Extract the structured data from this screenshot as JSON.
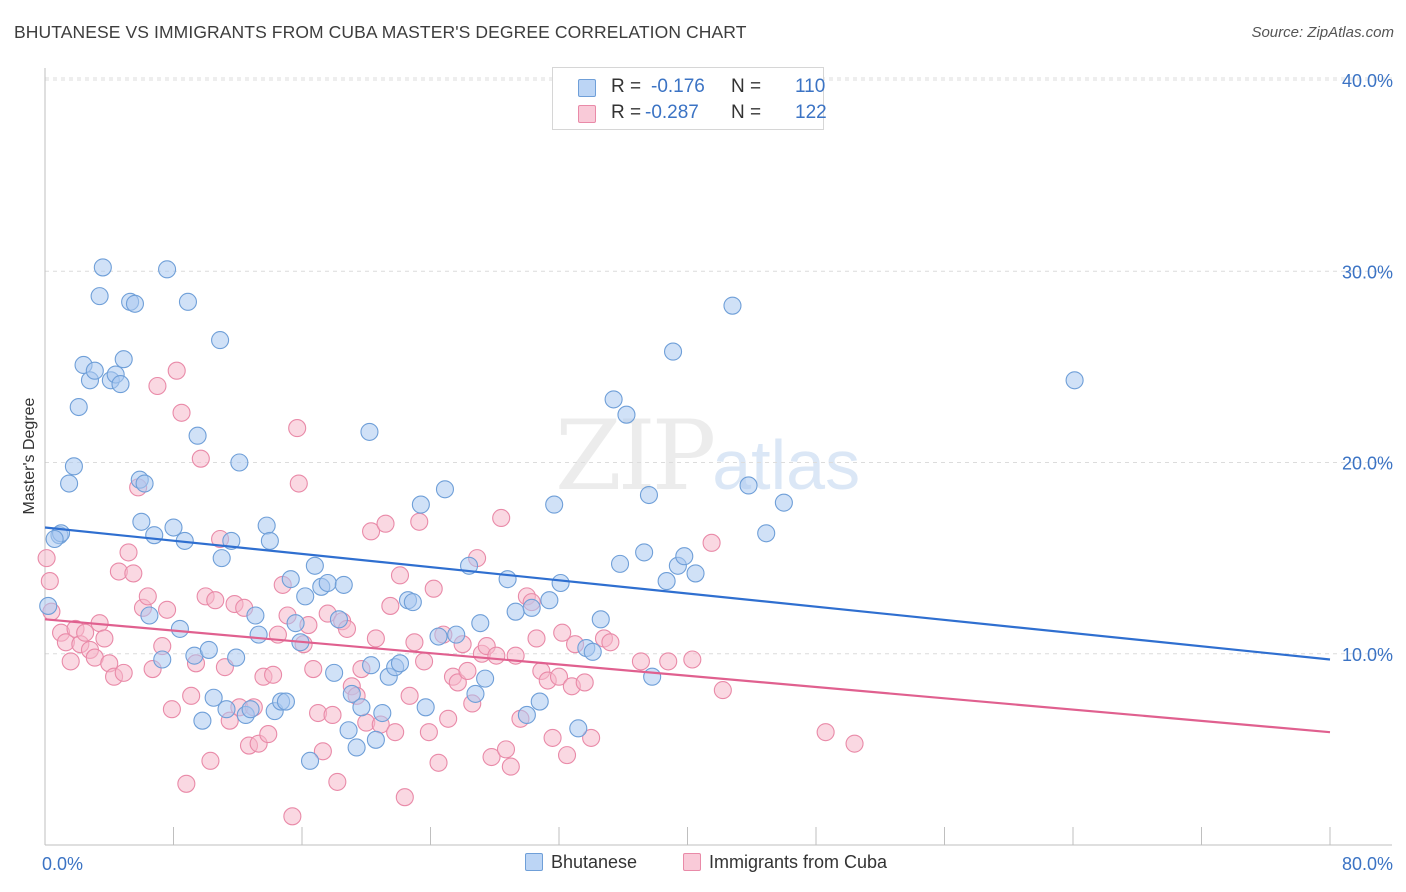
{
  "title": "BHUTANESE VS IMMIGRANTS FROM CUBA MASTER'S DEGREE CORRELATION CHART",
  "source": "Source: ZipAtlas.com",
  "watermark": {
    "zip": "ZIP",
    "atlas": "atlas"
  },
  "legend_top": [
    {
      "r_label": "R =",
      "r_value": "-0.176",
      "n_label": "N =",
      "n_value": "110",
      "color": "#a9c8f0"
    },
    {
      "r_label": "R =",
      "r_value": "-0.287",
      "n_label": "N =",
      "n_value": "122",
      "color": "#f5b8cb"
    }
  ],
  "legend_bottom": [
    "Bhutanese",
    "Immigrants from Cuba"
  ],
  "chart_data": {
    "type": "scatter",
    "xlabel": "",
    "ylabel": "Master's Degree",
    "xlim": [
      0,
      80
    ],
    "ylim": [
      0,
      40
    ],
    "x_tick_labels": [
      "0.0%",
      "80.0%"
    ],
    "y_tick_values": [
      10,
      20,
      30,
      40
    ],
    "y_tick_labels": [
      "10.0%",
      "20.0%",
      "30.0%",
      "40.0%"
    ],
    "grid": "horizontal dashed",
    "legend_placement": "top-center",
    "colors": {
      "blue_fill": "#a9c8f0",
      "blue_stroke": "#6f9fd8",
      "blue_line": "#2f6fd0",
      "pink_fill": "#f5b8cb",
      "pink_stroke": "#e98aa8",
      "pink_line": "#e0608f"
    },
    "series": [
      {
        "name": "Bhutanese",
        "trend": [
          [
            0,
            16.6
          ],
          [
            80,
            9.7
          ]
        ],
        "points": [
          [
            0.2,
            12.5
          ],
          [
            0.9,
            16.2
          ],
          [
            1.5,
            18.9
          ],
          [
            1.8,
            19.8
          ],
          [
            2.1,
            22.9
          ],
          [
            2.4,
            25.1
          ],
          [
            2.8,
            24.3
          ],
          [
            3.1,
            24.8
          ],
          [
            3.4,
            28.7
          ],
          [
            3.6,
            30.2
          ],
          [
            4.1,
            24.3
          ],
          [
            4.4,
            24.6
          ],
          [
            4.7,
            24.1
          ],
          [
            4.9,
            25.4
          ],
          [
            5.3,
            28.4
          ],
          [
            5.6,
            28.3
          ],
          [
            5.9,
            19.1
          ],
          [
            6.2,
            18.9
          ],
          [
            6.5,
            12
          ],
          [
            6.8,
            16.2
          ],
          [
            7.3,
            9.7
          ],
          [
            7.6,
            30.1
          ],
          [
            8.0,
            16.6
          ],
          [
            8.4,
            11.3
          ],
          [
            8.7,
            15.9
          ],
          [
            8.9,
            28.4
          ],
          [
            9.3,
            9.9
          ],
          [
            9.5,
            21.4
          ],
          [
            9.8,
            6.5
          ],
          [
            10.2,
            10.2
          ],
          [
            10.5,
            7.7
          ],
          [
            10.9,
            26.4
          ],
          [
            11.0,
            15
          ],
          [
            11.3,
            7.1
          ],
          [
            11.6,
            15.9
          ],
          [
            11.9,
            9.8
          ],
          [
            12.1,
            20
          ],
          [
            12.5,
            6.8
          ],
          [
            12.8,
            7.1
          ],
          [
            13.1,
            12
          ],
          [
            13.3,
            11
          ],
          [
            13.8,
            16.7
          ],
          [
            14.0,
            15.9
          ],
          [
            14.3,
            7
          ],
          [
            14.7,
            7.5
          ],
          [
            15.0,
            7.5
          ],
          [
            15.3,
            13.9
          ],
          [
            15.6,
            11.6
          ],
          [
            15.9,
            10.6
          ],
          [
            16.2,
            13
          ],
          [
            16.5,
            4.4
          ],
          [
            16.8,
            14.6
          ],
          [
            17.2,
            13.5
          ],
          [
            17.6,
            13.7
          ],
          [
            18.0,
            9
          ],
          [
            18.3,
            11.8
          ],
          [
            18.6,
            13.6
          ],
          [
            18.9,
            6
          ],
          [
            19.1,
            7.9
          ],
          [
            19.4,
            5.1
          ],
          [
            19.7,
            7.2
          ],
          [
            20.2,
            21.6
          ],
          [
            20.3,
            9.4
          ],
          [
            20.6,
            5.5
          ],
          [
            21.0,
            6.9
          ],
          [
            21.4,
            8.8
          ],
          [
            21.8,
            9.3
          ],
          [
            22.1,
            9.5
          ],
          [
            22.6,
            12.8
          ],
          [
            22.9,
            12.7
          ],
          [
            23.4,
            17.8
          ],
          [
            23.7,
            7.2
          ],
          [
            24.5,
            10.9
          ],
          [
            24.9,
            18.6
          ],
          [
            25.6,
            11
          ],
          [
            26.4,
            14.6
          ],
          [
            26.8,
            7.9
          ],
          [
            27.1,
            11.6
          ],
          [
            27.4,
            8.7
          ],
          [
            28.8,
            13.9
          ],
          [
            29.3,
            12.2
          ],
          [
            30.0,
            6.8
          ],
          [
            30.3,
            12.4
          ],
          [
            30.8,
            7.5
          ],
          [
            31.4,
            12.8
          ],
          [
            31.7,
            17.8
          ],
          [
            32.1,
            13.7
          ],
          [
            33.2,
            6.1
          ],
          [
            33.7,
            10.3
          ],
          [
            34.1,
            10.1
          ],
          [
            34.6,
            11.8
          ],
          [
            35.4,
            23.3
          ],
          [
            35.8,
            14.7
          ],
          [
            36.2,
            22.5
          ],
          [
            37.3,
            15.3
          ],
          [
            37.6,
            18.3
          ],
          [
            37.8,
            8.8
          ],
          [
            38.7,
            13.8
          ],
          [
            39.1,
            25.8
          ],
          [
            39.4,
            14.6
          ],
          [
            39.8,
            15.1
          ],
          [
            40.5,
            14.2
          ],
          [
            42.8,
            28.2
          ],
          [
            43.8,
            18.8
          ],
          [
            44.9,
            16.3
          ],
          [
            46.0,
            17.9
          ],
          [
            64.1,
            24.3
          ],
          [
            1.0,
            16.3
          ],
          [
            0.6,
            16.0
          ],
          [
            6.0,
            16.9
          ]
        ]
      },
      {
        "name": "Immigrants from Cuba",
        "trend": [
          [
            0,
            11.8
          ],
          [
            80,
            5.9
          ]
        ],
        "points": [
          [
            0.1,
            15
          ],
          [
            0.3,
            13.8
          ],
          [
            0.4,
            12.2
          ],
          [
            1.0,
            11.1
          ],
          [
            1.3,
            10.6
          ],
          [
            1.6,
            9.6
          ],
          [
            1.9,
            11.3
          ],
          [
            2.2,
            10.5
          ],
          [
            2.5,
            11.1
          ],
          [
            2.8,
            10.2
          ],
          [
            3.1,
            9.8
          ],
          [
            3.4,
            11.6
          ],
          [
            3.7,
            10.8
          ],
          [
            4.0,
            9.5
          ],
          [
            4.3,
            8.8
          ],
          [
            4.6,
            14.3
          ],
          [
            4.9,
            9
          ],
          [
            5.2,
            15.3
          ],
          [
            5.5,
            14.2
          ],
          [
            5.8,
            18.7
          ],
          [
            6.1,
            12.4
          ],
          [
            6.4,
            13
          ],
          [
            6.7,
            9.2
          ],
          [
            7.0,
            24
          ],
          [
            7.3,
            10.4
          ],
          [
            7.6,
            12.3
          ],
          [
            7.9,
            7.1
          ],
          [
            8.2,
            24.8
          ],
          [
            8.5,
            22.6
          ],
          [
            8.8,
            3.2
          ],
          [
            9.1,
            7.8
          ],
          [
            9.4,
            9.5
          ],
          [
            9.7,
            20.2
          ],
          [
            10.0,
            13
          ],
          [
            10.3,
            4.4
          ],
          [
            10.6,
            12.8
          ],
          [
            10.9,
            16
          ],
          [
            11.2,
            9.3
          ],
          [
            11.5,
            6.5
          ],
          [
            11.8,
            12.6
          ],
          [
            12.1,
            7.2
          ],
          [
            12.4,
            12.4
          ],
          [
            12.7,
            5.2
          ],
          [
            13.0,
            7.2
          ],
          [
            13.3,
            5.3
          ],
          [
            13.6,
            8.8
          ],
          [
            13.9,
            5.8
          ],
          [
            14.2,
            8.9
          ],
          [
            14.5,
            11
          ],
          [
            14.8,
            13.6
          ],
          [
            15.1,
            12
          ],
          [
            15.4,
            1.5
          ],
          [
            15.7,
            21.8
          ],
          [
            15.8,
            18.9
          ],
          [
            16.1,
            10.5
          ],
          [
            16.4,
            11.5
          ],
          [
            16.7,
            9.2
          ],
          [
            17.0,
            6.9
          ],
          [
            17.3,
            4.9
          ],
          [
            17.6,
            12.1
          ],
          [
            17.9,
            6.8
          ],
          [
            18.2,
            3.3
          ],
          [
            18.5,
            11.7
          ],
          [
            18.8,
            11.3
          ],
          [
            19.1,
            8.3
          ],
          [
            19.4,
            7.8
          ],
          [
            19.7,
            9.2
          ],
          [
            20.0,
            6.4
          ],
          [
            20.3,
            16.4
          ],
          [
            20.6,
            10.8
          ],
          [
            20.9,
            6.3
          ],
          [
            21.2,
            16.8
          ],
          [
            21.5,
            12.5
          ],
          [
            21.8,
            5.9
          ],
          [
            22.1,
            14.1
          ],
          [
            22.4,
            2.5
          ],
          [
            22.7,
            7.8
          ],
          [
            23.0,
            10.6
          ],
          [
            23.3,
            16.9
          ],
          [
            23.6,
            9.6
          ],
          [
            23.9,
            5.9
          ],
          [
            24.2,
            13.4
          ],
          [
            24.5,
            4.3
          ],
          [
            24.8,
            11
          ],
          [
            25.1,
            6.6
          ],
          [
            25.4,
            8.8
          ],
          [
            25.7,
            8.5
          ],
          [
            26.0,
            10.5
          ],
          [
            26.3,
            9.1
          ],
          [
            26.6,
            7.4
          ],
          [
            26.9,
            15
          ],
          [
            27.2,
            10
          ],
          [
            27.5,
            10.4
          ],
          [
            27.8,
            4.6
          ],
          [
            28.1,
            9.9
          ],
          [
            28.4,
            17.1
          ],
          [
            28.7,
            5
          ],
          [
            29.0,
            4.1
          ],
          [
            29.3,
            9.9
          ],
          [
            29.6,
            6.6
          ],
          [
            30.0,
            13
          ],
          [
            30.3,
            12.7
          ],
          [
            30.6,
            10.8
          ],
          [
            30.9,
            9.1
          ],
          [
            31.3,
            8.6
          ],
          [
            31.6,
            5.6
          ],
          [
            32.0,
            8.8
          ],
          [
            32.2,
            11.1
          ],
          [
            32.5,
            4.7
          ],
          [
            32.8,
            8.3
          ],
          [
            33.0,
            10.5
          ],
          [
            33.6,
            8.5
          ],
          [
            34.0,
            5.6
          ],
          [
            34.8,
            10.8
          ],
          [
            35.2,
            10.6
          ],
          [
            37.1,
            9.6
          ],
          [
            38.8,
            9.6
          ],
          [
            40.3,
            9.7
          ],
          [
            41.5,
            15.8
          ],
          [
            42.2,
            8.1
          ],
          [
            48.6,
            5.9
          ],
          [
            50.4,
            5.3
          ]
        ]
      }
    ]
  }
}
